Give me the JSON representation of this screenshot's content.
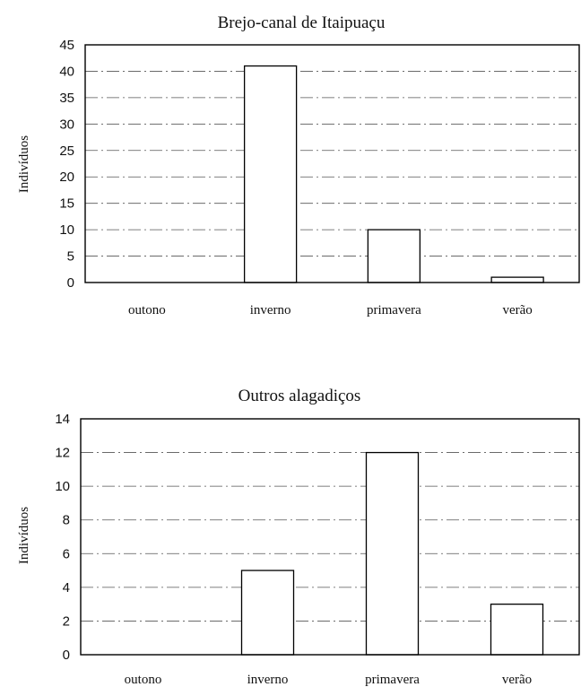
{
  "chart_data": [
    {
      "type": "bar",
      "title": "Brejo-canal de Itaipuaçu",
      "ylabel": "Indivíduos",
      "xlabel": "",
      "categories": [
        "outono",
        "inverno",
        "primavera",
        "verão"
      ],
      "values": [
        0,
        41,
        10,
        1
      ],
      "ylim": [
        0,
        45
      ],
      "yticks": [
        0,
        5,
        10,
        15,
        20,
        25,
        30,
        35,
        40,
        45
      ],
      "grid": true,
      "legend": "none"
    },
    {
      "type": "bar",
      "title": "Outros alagadiços",
      "ylabel": "Indivíduos",
      "xlabel": "",
      "categories": [
        "outono",
        "inverno",
        "primavera",
        "verão"
      ],
      "values": [
        0,
        5,
        12,
        3
      ],
      "ylim": [
        0,
        14
      ],
      "yticks": [
        0,
        2,
        4,
        6,
        8,
        10,
        12,
        14
      ],
      "grid": true,
      "legend": "none"
    }
  ]
}
